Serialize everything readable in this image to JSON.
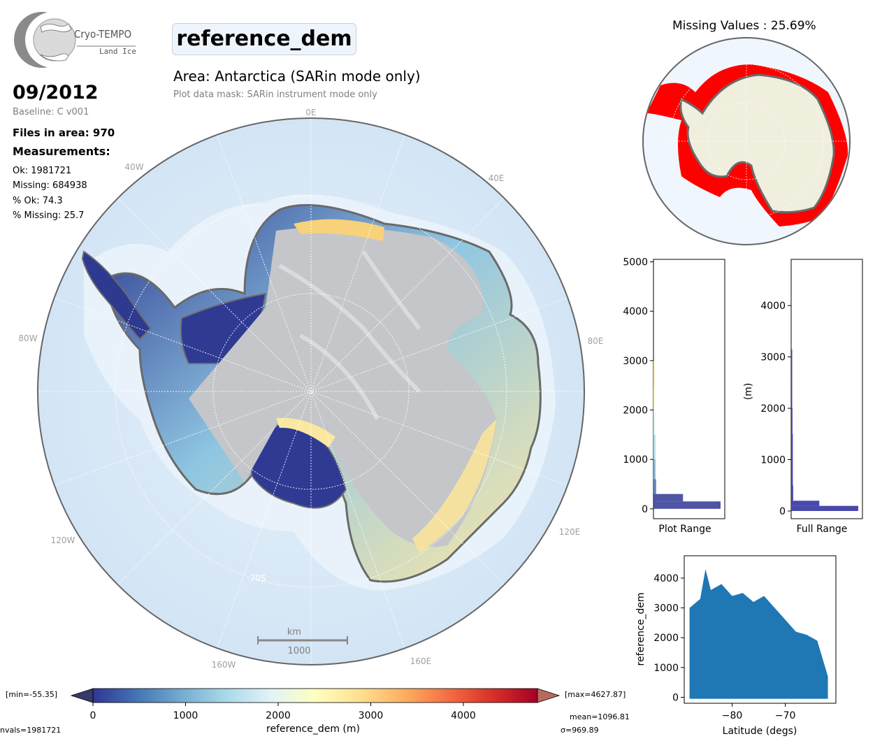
{
  "logo": {
    "name": "Cryo-TEMPO",
    "subtitle": "Land Ice"
  },
  "header": {
    "date": "09/2012",
    "baseline": "Baseline: C v001",
    "files_in_area": "Files in area: 970",
    "measurements_label": "Measurements:",
    "stats": [
      "Ok: 1981721",
      "Missing: 684938",
      "% Ok: 74.3",
      "% Missing: 25.7"
    ]
  },
  "main": {
    "parameter_title": "reference_dem",
    "area_title": "Area: Antarctica (SARin mode only)",
    "mask_note": "Plot data mask: SARin instrument mode only"
  },
  "map": {
    "meridian_labels": [
      "0E",
      "40E",
      "80E",
      "120E",
      "160E",
      "160W",
      "120W",
      "80W",
      "40W"
    ],
    "latitude_label": "70S",
    "scale_bar": {
      "unit": "km",
      "value": "1000"
    }
  },
  "colorbar": {
    "label": "reference_dem (m)",
    "ticks": [
      "0",
      "1000",
      "2000",
      "3000",
      "4000"
    ],
    "min_label": "[min=-55.35]",
    "max_label": "[max=4627.87]",
    "colors": [
      "#313695",
      "#4575b4",
      "#74add1",
      "#abd9e9",
      "#e0f3f8",
      "#ffffbf",
      "#fee090",
      "#fdae61",
      "#f46d43",
      "#d73027",
      "#a50026"
    ]
  },
  "summary": {
    "nvals": "nvals=1981721",
    "mean": "mean=1096.81",
    "sigma": "σ=969.89"
  },
  "missing_map": {
    "title": "Missing Values : 25.69%"
  },
  "chart_data": [
    {
      "type": "bar",
      "orientation": "horizontal",
      "xlabel": "Plot Range",
      "ylabel": "",
      "ylim": [
        -200,
        5050
      ],
      "y_ticks": [
        "0",
        "1000",
        "2000",
        "3000",
        "4000",
        "5000"
      ],
      "bin_edges": [
        0,
        150,
        300,
        600,
        1000,
        1500,
        2000,
        2500,
        3000
      ],
      "values": [
        100,
        44,
        4,
        3,
        3,
        2.5,
        2,
        1.5
      ]
    },
    {
      "type": "bar",
      "orientation": "horizontal",
      "xlabel": "Full Range",
      "ylabel": "(m)",
      "ylim": [
        -150,
        4900
      ],
      "y_ticks": [
        "0",
        "1000",
        "2000",
        "3000",
        "4000"
      ],
      "bin_edges": [
        0,
        100,
        200,
        500,
        1000,
        1500,
        2000,
        2500,
        3000,
        3150
      ],
      "values": [
        100,
        42,
        3,
        2.5,
        2.5,
        2,
        1.5,
        1.2,
        0.8
      ]
    },
    {
      "type": "scatter",
      "xlabel": "Latitude (degs)",
      "ylabel": "reference_dem",
      "xlim": [
        -89,
        -60.5
      ],
      "ylim": [
        -200,
        4750
      ],
      "x_ticks": [
        "−80",
        "−70"
      ],
      "y_ticks": [
        "0",
        "1000",
        "2000",
        "3000",
        "4000"
      ],
      "envelope": {
        "x": [
          -88,
          -86,
          -85,
          -84,
          -82,
          -80,
          -78,
          -76,
          -74,
          -72,
          -70,
          -68,
          -66,
          -64,
          -62
        ],
        "y": [
          3000,
          3300,
          4300,
          3600,
          3800,
          3400,
          3500,
          3200,
          3400,
          3000,
          2600,
          2200,
          2100,
          1900,
          700
        ]
      }
    }
  ]
}
